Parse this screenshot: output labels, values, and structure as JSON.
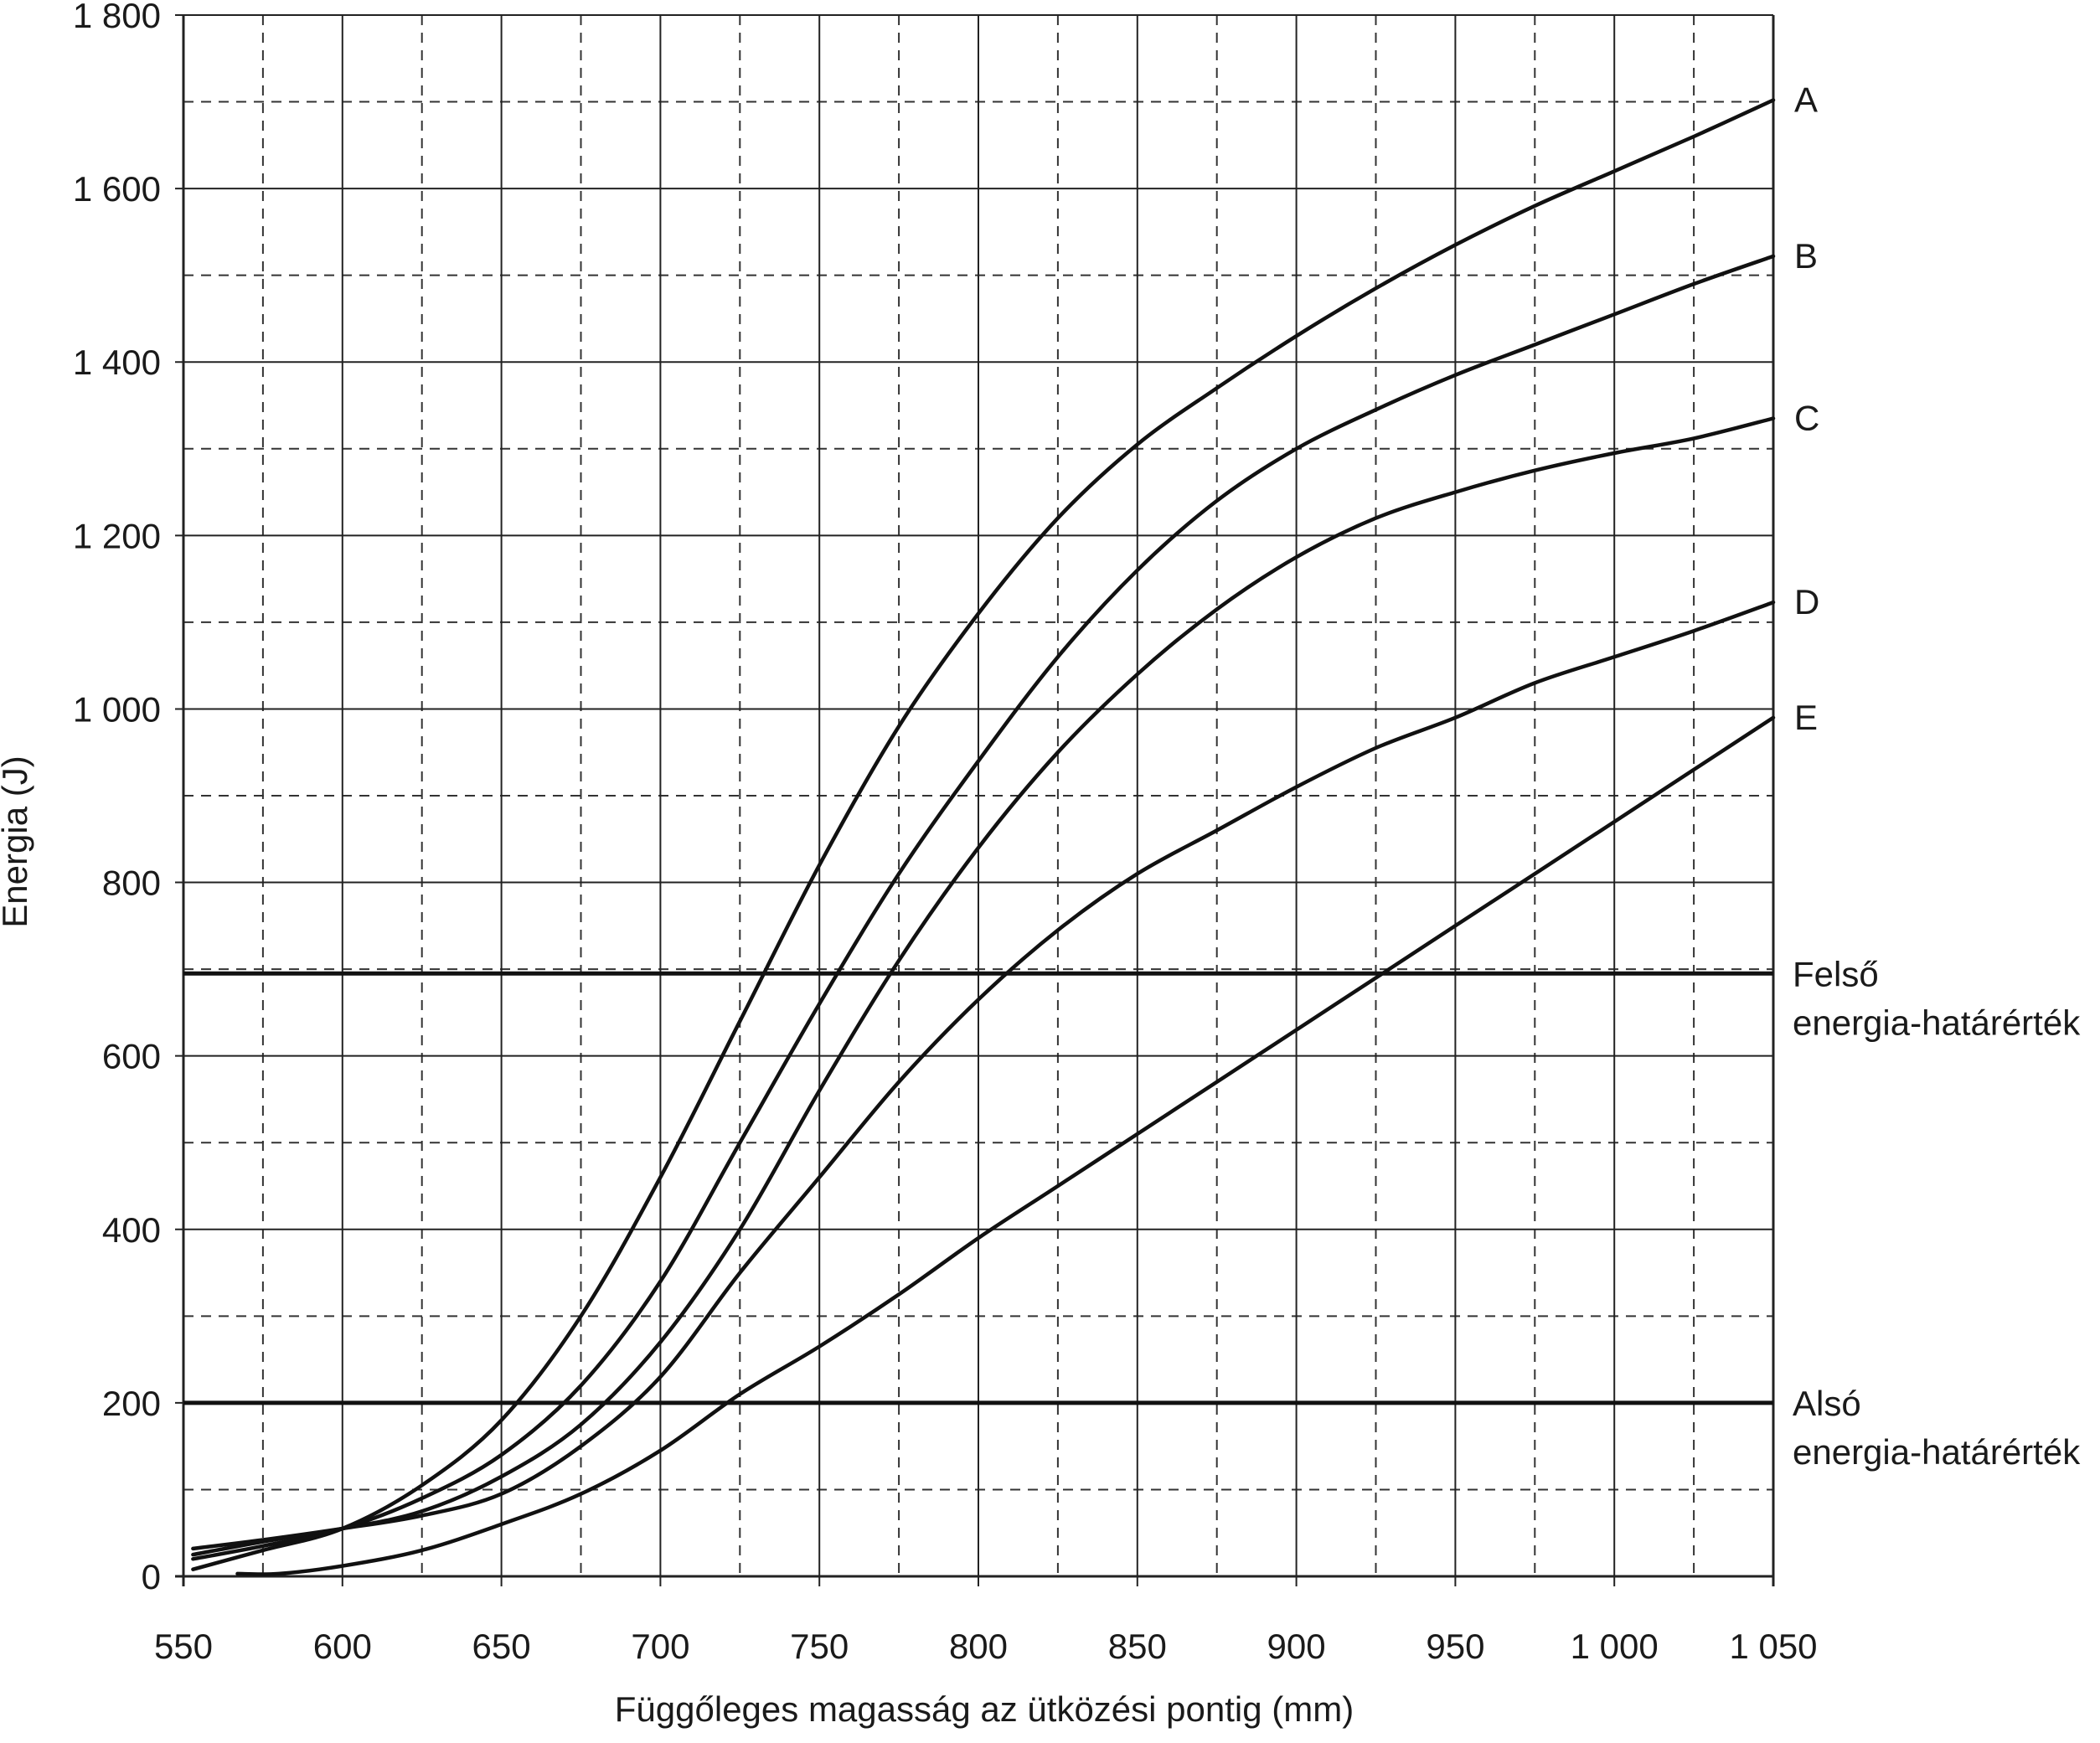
{
  "chart_data": {
    "type": "line",
    "title": "",
    "xlabel": "Függőleges magasság az ütközési pontig (mm)",
    "ylabel": "Energia (J)",
    "xlim": [
      550,
      1050
    ],
    "ylim": [
      0,
      1800
    ],
    "x_major_ticks": [
      550,
      600,
      650,
      700,
      750,
      800,
      850,
      900,
      950,
      1000,
      1050
    ],
    "x_tick_labels": [
      "550",
      "600",
      "650",
      "700",
      "750",
      "800",
      "850",
      "900",
      "950",
      "1 000",
      "1 050"
    ],
    "y_major_ticks": [
      0,
      200,
      400,
      600,
      800,
      1000,
      1200,
      1400,
      1600,
      1800
    ],
    "y_tick_labels": [
      "0",
      "200",
      "400",
      "600",
      "800",
      "1 000",
      "1 200",
      "1 400",
      "1 600",
      "1 800"
    ],
    "grid": "major solid, minor dashed",
    "series": [
      {
        "name": "A",
        "points": [
          [
            553,
            8
          ],
          [
            575,
            30
          ],
          [
            600,
            55
          ],
          [
            625,
            105
          ],
          [
            650,
            180
          ],
          [
            675,
            300
          ],
          [
            700,
            460
          ],
          [
            725,
            640
          ],
          [
            750,
            820
          ],
          [
            775,
            980
          ],
          [
            800,
            1110
          ],
          [
            825,
            1220
          ],
          [
            850,
            1305
          ],
          [
            875,
            1370
          ],
          [
            900,
            1430
          ],
          [
            925,
            1485
          ],
          [
            950,
            1535
          ],
          [
            975,
            1580
          ],
          [
            1000,
            1620
          ],
          [
            1025,
            1660
          ],
          [
            1050,
            1702
          ]
        ]
      },
      {
        "name": "B",
        "points": [
          [
            553,
            20
          ],
          [
            575,
            35
          ],
          [
            600,
            55
          ],
          [
            625,
            90
          ],
          [
            650,
            140
          ],
          [
            675,
            220
          ],
          [
            700,
            340
          ],
          [
            725,
            500
          ],
          [
            750,
            660
          ],
          [
            775,
            810
          ],
          [
            800,
            940
          ],
          [
            825,
            1060
          ],
          [
            850,
            1160
          ],
          [
            875,
            1240
          ],
          [
            900,
            1300
          ],
          [
            925,
            1345
          ],
          [
            950,
            1385
          ],
          [
            975,
            1420
          ],
          [
            1000,
            1455
          ],
          [
            1025,
            1490
          ],
          [
            1050,
            1522
          ]
        ]
      },
      {
        "name": "C",
        "points": [
          [
            553,
            25
          ],
          [
            575,
            40
          ],
          [
            600,
            55
          ],
          [
            625,
            75
          ],
          [
            650,
            115
          ],
          [
            675,
            175
          ],
          [
            700,
            270
          ],
          [
            725,
            400
          ],
          [
            750,
            560
          ],
          [
            775,
            710
          ],
          [
            800,
            840
          ],
          [
            825,
            950
          ],
          [
            850,
            1040
          ],
          [
            875,
            1115
          ],
          [
            900,
            1175
          ],
          [
            925,
            1220
          ],
          [
            950,
            1250
          ],
          [
            975,
            1275
          ],
          [
            1000,
            1295
          ],
          [
            1025,
            1312
          ],
          [
            1050,
            1335
          ]
        ]
      },
      {
        "name": "D",
        "points": [
          [
            553,
            32
          ],
          [
            575,
            42
          ],
          [
            600,
            55
          ],
          [
            625,
            70
          ],
          [
            650,
            95
          ],
          [
            675,
            150
          ],
          [
            700,
            230
          ],
          [
            725,
            350
          ],
          [
            750,
            460
          ],
          [
            775,
            570
          ],
          [
            800,
            665
          ],
          [
            825,
            745
          ],
          [
            850,
            810
          ],
          [
            875,
            860
          ],
          [
            900,
            910
          ],
          [
            925,
            955
          ],
          [
            950,
            990
          ],
          [
            975,
            1030
          ],
          [
            1000,
            1060
          ],
          [
            1025,
            1090
          ],
          [
            1050,
            1123
          ]
        ]
      },
      {
        "name": "E",
        "points": [
          [
            567,
            3
          ],
          [
            580,
            3
          ],
          [
            600,
            12
          ],
          [
            625,
            30
          ],
          [
            650,
            60
          ],
          [
            675,
            95
          ],
          [
            700,
            145
          ],
          [
            725,
            210
          ],
          [
            750,
            265
          ],
          [
            775,
            325
          ],
          [
            800,
            390
          ],
          [
            825,
            450
          ],
          [
            850,
            510
          ],
          [
            875,
            570
          ],
          [
            900,
            630
          ],
          [
            925,
            690
          ],
          [
            950,
            750
          ],
          [
            975,
            810
          ],
          [
            1000,
            870
          ],
          [
            1025,
            930
          ],
          [
            1050,
            990
          ]
        ]
      }
    ],
    "reference_lines": [
      {
        "label_line1": "Felső",
        "label_line2": "energia-határérték",
        "value": 695
      },
      {
        "label_line1": "Alsó",
        "label_line2": "energia-határérték",
        "value": 200
      }
    ]
  }
}
